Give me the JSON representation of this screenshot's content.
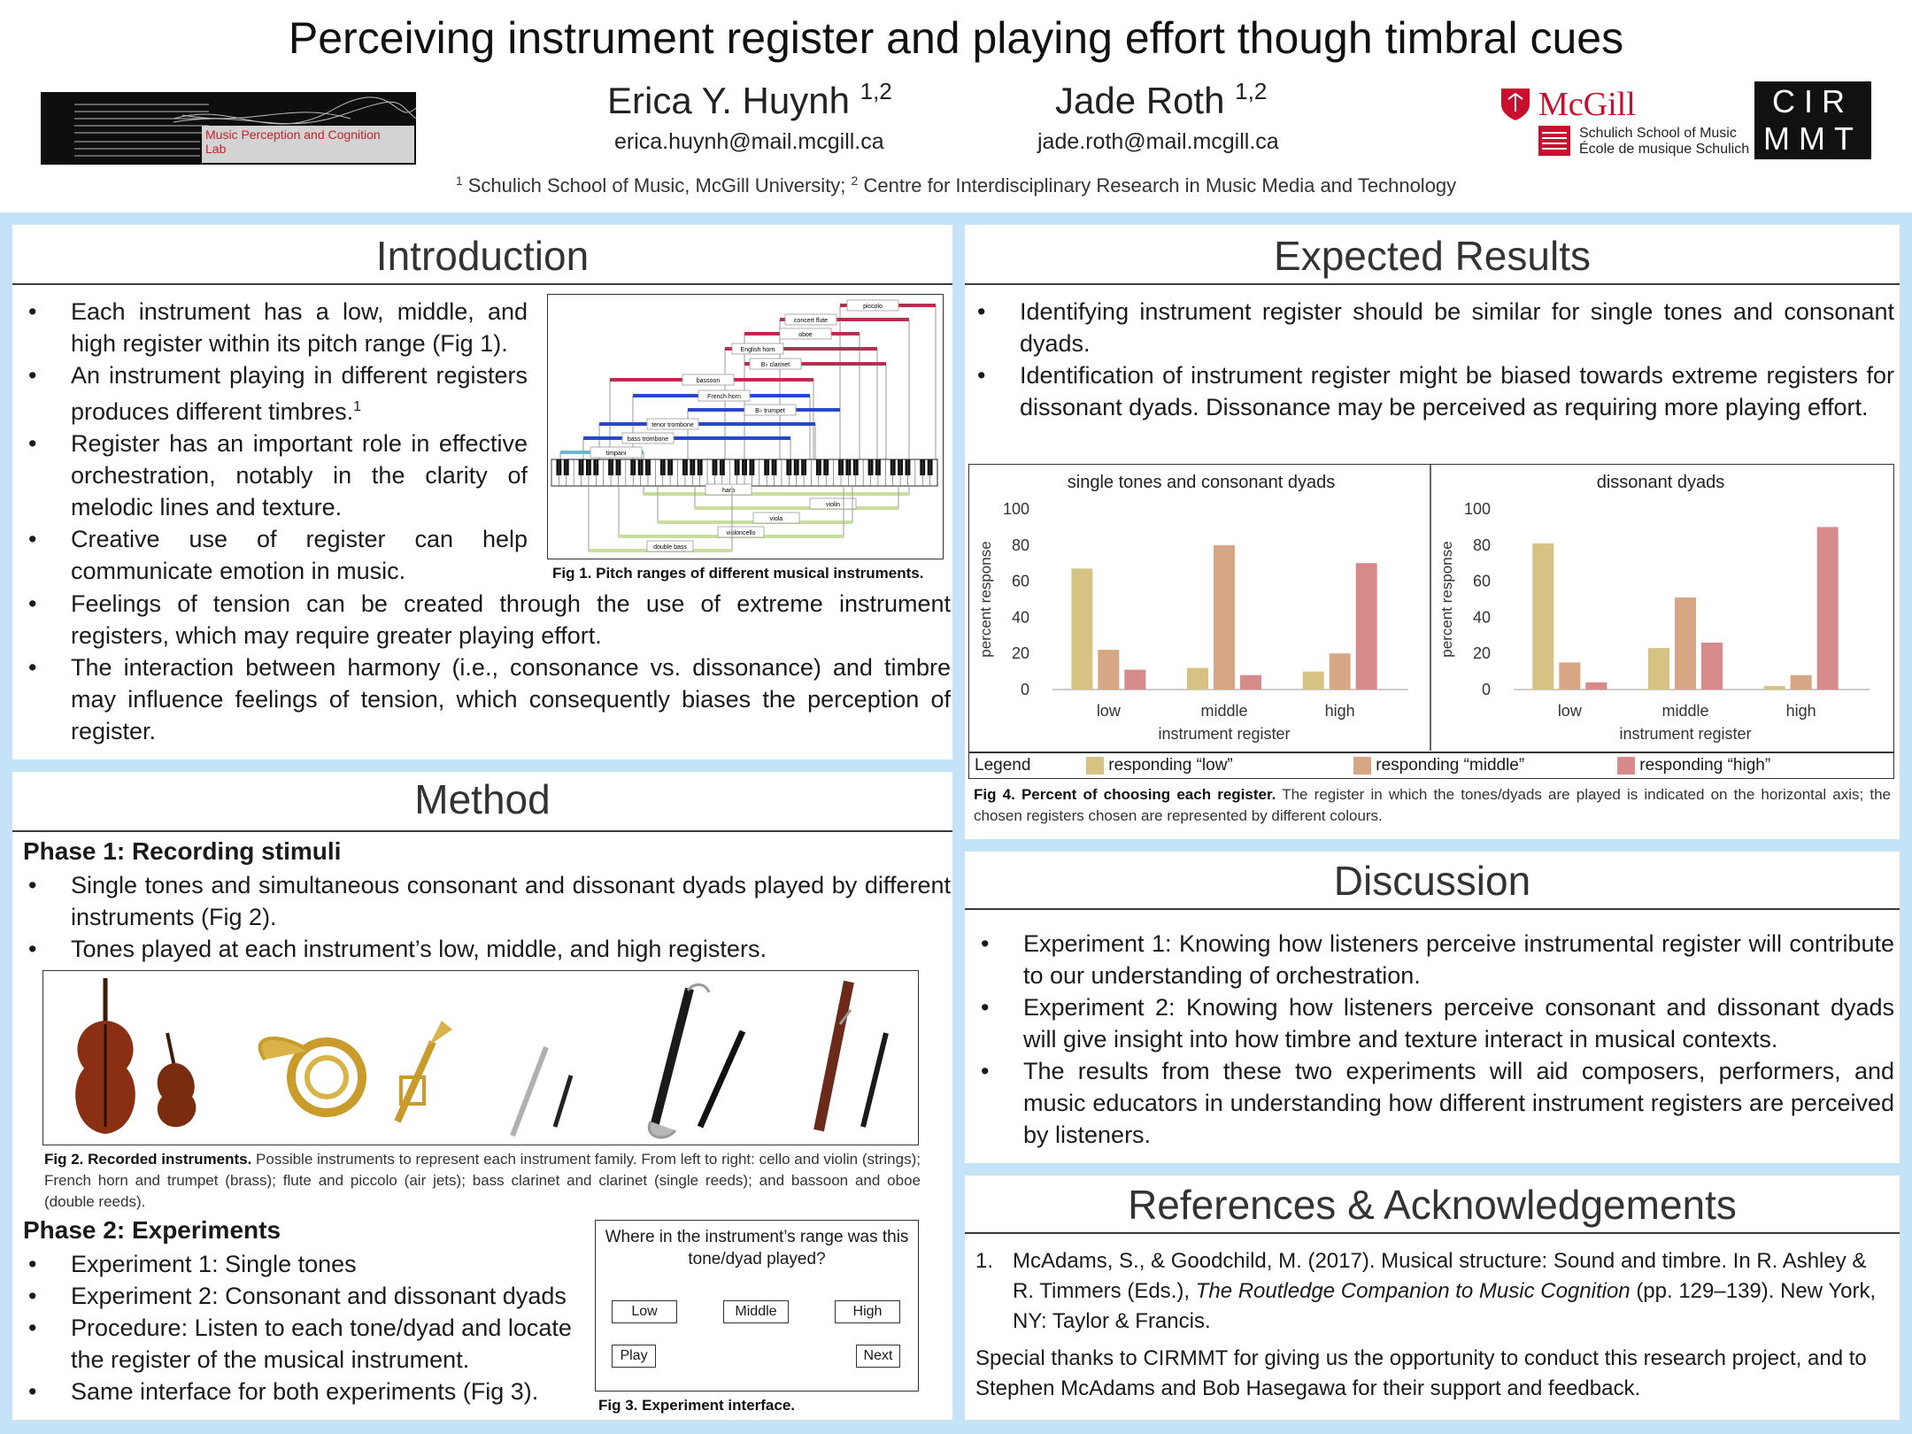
{
  "header": {
    "title": "Perceiving instrument register and playing effort though timbral cues",
    "authors": [
      {
        "name": "Erica Y. Huynh",
        "sup": "1,2",
        "email": "erica.huynh@mail.mcgill.ca"
      },
      {
        "name": "Jade Roth",
        "sup": "1,2",
        "email": "jade.roth@mail.mcgill.ca"
      }
    ],
    "affiliation_1": "Schulich School of Music, McGill University;",
    "affiliation_2": "Centre for Interdisciplinary Research in Music Media and Technology",
    "lab_logo": "Music Perception and Cognition Lab",
    "mcgill_logo": "McGill",
    "mcgill_sub_1": "Schulich School of Music",
    "mcgill_sub_2": "École de musique Schulich",
    "cirmmt_1": "CIR",
    "cirmmt_2": "MMT"
  },
  "introduction": {
    "heading": "Introduction",
    "bullets_top": [
      "Each instrument has a low, middle, and high register within its pitch range (Fig 1).",
      "An instrument playing in different registers produces different timbres.",
      "Register has an important role in effective orchestration, notably in the clarity of melodic lines and texture.",
      "Creative use of register can help communicate emotion in music."
    ],
    "sup_ref": "1",
    "bullets_bottom": [
      "Feelings of tension can be created through the use of extreme instrument registers, which may require greater playing effort.",
      "The interaction between harmony (i.e., consonance vs. dissonance) and timbre may influence feelings of tension, which consequently biases the perception of register."
    ],
    "fig1_caption": "Fig 1. Pitch ranges of different musical instruments.",
    "fig1_labels": [
      "piccolo",
      "concert flute",
      "oboe",
      "English horn",
      "B♭ clarinet",
      "bassoon",
      "French horn",
      "B♭ trumpet",
      "tenor trombone",
      "bass trombone",
      "timpani",
      "harp",
      "violin",
      "viola",
      "violoncello",
      "double bass"
    ]
  },
  "method": {
    "heading": "Method",
    "phase1": "Phase 1: Recording stimuli",
    "phase1_bullets": [
      "Single tones and simultaneous consonant and dissonant dyads played by different instruments (Fig 2).",
      "Tones played at each instrument’s low, middle, and high registers."
    ],
    "fig2_caption_bold": "Fig 2. Recorded instruments.",
    "fig2_caption": "Possible instruments to represent each instrument family. From left to right: cello and violin (strings); French horn and trumpet (brass); flute and piccolo (air jets); bass clarinet and clarinet (single reeds); and bassoon and oboe (double reeds).",
    "phase2": "Phase 2: Experiments",
    "phase2_bullets": [
      "Experiment 1: Single tones",
      "Experiment 2: Consonant and dissonant dyads",
      "Procedure: Listen to each tone/dyad and locate the register of the musical instrument.",
      "Same interface for both experiments (Fig 3)."
    ],
    "fig3_caption": "Fig 3. Experiment interface.",
    "interface": {
      "question": "Where in the instrument’s range was this tone/dyad played?",
      "btn_low": "Low",
      "btn_middle": "Middle",
      "btn_high": "High",
      "btn_play": "Play",
      "btn_next": "Next"
    }
  },
  "expected": {
    "heading": "Expected Results",
    "bullets": [
      "Identifying instrument register should be similar for single tones and consonant dyads.",
      "Identification of instrument register might be biased towards extreme registers for dissonant dyads. Dissonance may be perceived as requiring more playing effort."
    ],
    "legend_label": "Legend",
    "fig4_caption_bold": "Fig 4. Percent of choosing each register.",
    "fig4_caption": "The register in which the tones/dyads are played is indicated on the horizontal axis; the chosen registers chosen are represented by different colours."
  },
  "chart_data": [
    {
      "type": "bar",
      "title": "single tones and consonant dyads",
      "xlabel": "instrument register",
      "ylabel": "percent response",
      "categories": [
        "low",
        "middle",
        "high"
      ],
      "ylim": [
        0,
        100
      ],
      "yticks": [
        0,
        20,
        40,
        60,
        80,
        100
      ],
      "grid": false,
      "series": [
        {
          "name": "responding “low”",
          "color": "#d6c384",
          "values": [
            67,
            12,
            10
          ]
        },
        {
          "name": "responding “middle”",
          "color": "#d7a785",
          "values": [
            22,
            80,
            20
          ]
        },
        {
          "name": "responding “high”",
          "color": "#d68a8a",
          "values": [
            11,
            8,
            70
          ]
        }
      ]
    },
    {
      "type": "bar",
      "title": "dissonant dyads",
      "xlabel": "instrument register",
      "ylabel": "percent response",
      "categories": [
        "low",
        "middle",
        "high"
      ],
      "ylim": [
        0,
        100
      ],
      "yticks": [
        0,
        20,
        40,
        60,
        80,
        100
      ],
      "grid": false,
      "series": [
        {
          "name": "responding “low”",
          "color": "#d6c384",
          "values": [
            81,
            23,
            2
          ]
        },
        {
          "name": "responding “middle”",
          "color": "#d7a785",
          "values": [
            15,
            51,
            8
          ]
        },
        {
          "name": "responding “high”",
          "color": "#d68a8a",
          "values": [
            4,
            26,
            90
          ]
        }
      ]
    }
  ],
  "discussion": {
    "heading": "Discussion",
    "bullets": [
      "Experiment 1: Knowing how listeners perceive instrumental register will contribute to our understanding of orchestration.",
      "Experiment 2: Knowing how listeners perceive consonant and dissonant dyads will give insight into how timbre and texture interact in musical contexts.",
      "The results from these two experiments will aid composers, performers, and music educators in understanding how different instrument registers are perceived by listeners."
    ]
  },
  "references": {
    "heading": "References & Acknowledgements",
    "ref1_num": "1.",
    "ref1_a": "McAdams, S., & Goodchild, M. (2017). Musical structure: Sound and timbre. In R. Ashley & R. Timmers (Eds.),",
    "ref1_italic": "The Routledge Companion to Music Cognition",
    "ref1_b": "(pp. 129–139). New York, NY: Taylor & Francis.",
    "ack": "Special thanks to CIRMMT for giving us the opportunity to conduct this research project, and to Stephen McAdams and Bob Hasegawa for their support and feedback."
  },
  "colors": {
    "background": "#c5e3f6",
    "low": "#d6c384",
    "middle": "#d7a785",
    "high": "#d68a8a",
    "woodwind": "#b5304f",
    "brass": "#2a47c9",
    "percussion": "#6fb6d6",
    "strings": "#c7df9c"
  }
}
